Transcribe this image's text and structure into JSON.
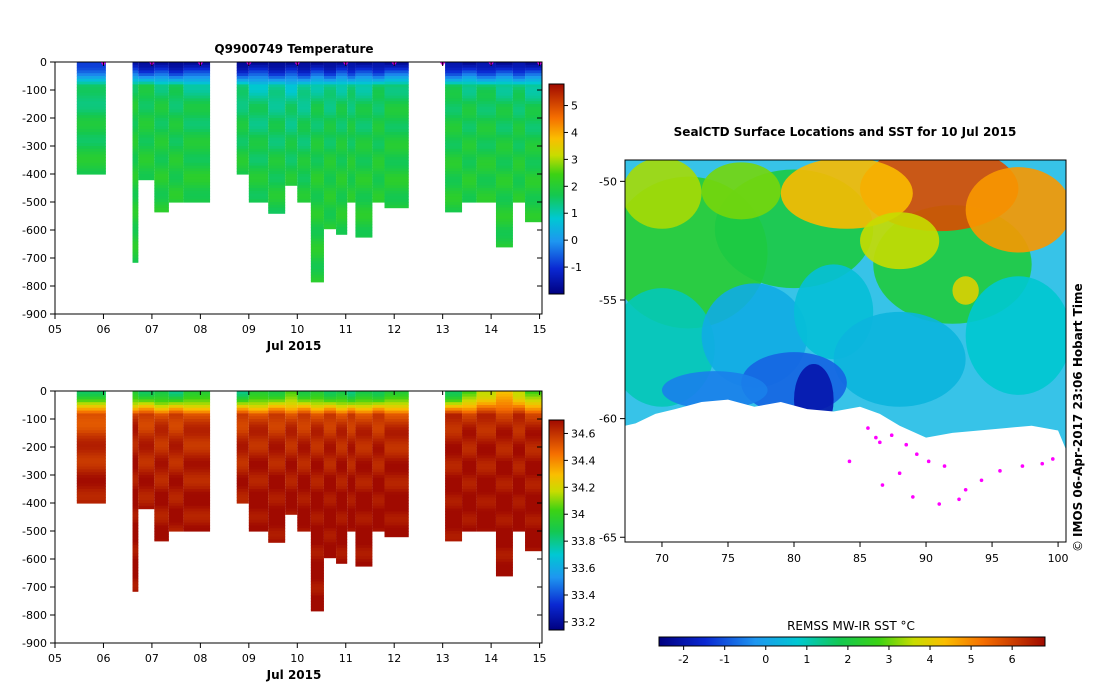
{
  "figure_caption": "IMOS 06-Apr-2017 23:06 Hobart Time",
  "copyright_symbol": "©",
  "chart_data": [
    {
      "type": "heatmap",
      "title": "Q9900749  Temperature",
      "xlabel": "Jul 2015",
      "ylabel": "",
      "xlim": [
        5.0,
        15.05
      ],
      "ylim": [
        -900,
        0
      ],
      "xticks": [
        5,
        6,
        7,
        8,
        9,
        10,
        11,
        12,
        13,
        14,
        15
      ],
      "xtick_labels": [
        "05",
        "06",
        "07",
        "08",
        "09",
        "10",
        "11",
        "12",
        "13",
        "14",
        "15"
      ],
      "yticks": [
        0,
        -100,
        -200,
        -300,
        -400,
        -500,
        -600,
        -700,
        -800,
        -900
      ],
      "ytick_labels": [
        "0",
        "-100",
        "-200",
        "-300",
        "-400",
        "-500",
        "-600",
        "-700",
        "-800",
        "-900"
      ],
      "colorbar": {
        "min": -2.0,
        "max": 5.8,
        "ticks": [
          -1,
          0,
          1,
          2,
          3,
          4,
          5
        ],
        "tick_labels": [
          "-1",
          "0",
          "1",
          "2",
          "3",
          "4",
          "5"
        ]
      },
      "profiles": [
        {
          "x0": 5.45,
          "x1": 6.05,
          "depth": 400,
          "surface": -0.8,
          "mid": 1.3,
          "deep": 1.9
        },
        {
          "x0": 6.6,
          "x1": 6.72,
          "depth": 715,
          "surface": -1.6,
          "mid": 1.7,
          "deep": 1.9
        },
        {
          "x0": 6.72,
          "x1": 7.05,
          "depth": 420,
          "surface": -1.6,
          "mid": 1.6,
          "deep": 1.9
        },
        {
          "x0": 7.05,
          "x1": 7.35,
          "depth": 535,
          "surface": -1.7,
          "mid": 1.5,
          "deep": 1.9
        },
        {
          "x0": 7.35,
          "x1": 7.65,
          "depth": 500,
          "surface": -1.7,
          "mid": 1.4,
          "deep": 1.9
        },
        {
          "x0": 7.65,
          "x1": 8.2,
          "depth": 500,
          "surface": -1.7,
          "mid": 1.3,
          "deep": 1.9
        },
        {
          "x0": 8.75,
          "x1": 9.0,
          "depth": 400,
          "surface": -1.7,
          "mid": 1.2,
          "deep": 1.9
        },
        {
          "x0": 9.0,
          "x1": 9.4,
          "depth": 500,
          "surface": -1.7,
          "mid": 1.0,
          "deep": 1.8
        },
        {
          "x0": 9.4,
          "x1": 9.75,
          "depth": 540,
          "surface": -1.7,
          "mid": 1.0,
          "deep": 1.8
        },
        {
          "x0": 9.75,
          "x1": 10.0,
          "depth": 440,
          "surface": -1.7,
          "mid": 0.9,
          "deep": 1.8
        },
        {
          "x0": 10.0,
          "x1": 10.28,
          "depth": 500,
          "surface": -1.7,
          "mid": 1.0,
          "deep": 1.8
        },
        {
          "x0": 10.28,
          "x1": 10.55,
          "depth": 785,
          "surface": -1.7,
          "mid": 1.2,
          "deep": 1.9
        },
        {
          "x0": 10.55,
          "x1": 10.8,
          "depth": 595,
          "surface": -1.7,
          "mid": 1.1,
          "deep": 1.9
        },
        {
          "x0": 10.8,
          "x1": 11.03,
          "depth": 615,
          "surface": -1.6,
          "mid": 1.2,
          "deep": 1.9
        },
        {
          "x0": 11.03,
          "x1": 11.2,
          "depth": 500,
          "surface": -1.6,
          "mid": 1.2,
          "deep": 1.9
        },
        {
          "x0": 11.2,
          "x1": 11.55,
          "depth": 625,
          "surface": -1.6,
          "mid": 1.2,
          "deep": 1.9
        },
        {
          "x0": 11.55,
          "x1": 11.8,
          "depth": 500,
          "surface": -1.6,
          "mid": 1.4,
          "deep": 1.9
        },
        {
          "x0": 11.8,
          "x1": 12.3,
          "depth": 520,
          "surface": -1.6,
          "mid": 1.5,
          "deep": 1.9
        },
        {
          "x0": 13.05,
          "x1": 13.4,
          "depth": 535,
          "surface": -1.6,
          "mid": 1.5,
          "deep": 1.9
        },
        {
          "x0": 13.4,
          "x1": 13.7,
          "depth": 500,
          "surface": -1.6,
          "mid": 1.4,
          "deep": 1.9
        },
        {
          "x0": 13.7,
          "x1": 14.1,
          "depth": 500,
          "surface": -1.6,
          "mid": 1.4,
          "deep": 1.9
        },
        {
          "x0": 14.1,
          "x1": 14.45,
          "depth": 660,
          "surface": -1.6,
          "mid": 1.3,
          "deep": 1.9
        },
        {
          "x0": 14.45,
          "x1": 14.7,
          "depth": 500,
          "surface": -1.6,
          "mid": 1.3,
          "deep": 1.9
        },
        {
          "x0": 14.7,
          "x1": 15.05,
          "depth": 570,
          "surface": -1.6,
          "mid": 1.2,
          "deep": 1.9
        }
      ],
      "markers_x": [
        6.0,
        7.0,
        8.0,
        9.0,
        10.0,
        11.0,
        12.0,
        13.0,
        14.0,
        15.0
      ],
      "marker_color": "#e000e0"
    },
    {
      "type": "heatmap",
      "title": "",
      "xlabel": "Jul 2015",
      "xlim": [
        5.0,
        15.05
      ],
      "ylim": [
        -900,
        0
      ],
      "xticks": [
        5,
        6,
        7,
        8,
        9,
        10,
        11,
        12,
        13,
        14,
        15
      ],
      "xtick_labels": [
        "05",
        "06",
        "07",
        "08",
        "09",
        "10",
        "11",
        "12",
        "13",
        "14",
        "15"
      ],
      "yticks": [
        0,
        -100,
        -200,
        -300,
        -400,
        -500,
        -600,
        -700,
        -800,
        -900
      ],
      "ytick_labels": [
        "0",
        "-100",
        "-200",
        "-300",
        "-400",
        "-500",
        "-600",
        "-700",
        "-800",
        "-900"
      ],
      "colorbar": {
        "min": 33.14,
        "max": 34.7,
        "ticks": [
          33.2,
          33.4,
          33.6,
          33.8,
          34,
          34.2,
          34.4,
          34.6
        ],
        "tick_labels": [
          "33.2",
          "33.4",
          "33.6",
          "33.8",
          "34",
          "34.2",
          "34.4",
          "34.6"
        ]
      },
      "profiles": [
        {
          "x0": 5.45,
          "x1": 6.05,
          "depth": 400,
          "surface": 33.9,
          "mid": 34.5,
          "deep": 34.68
        },
        {
          "x0": 6.6,
          "x1": 6.72,
          "depth": 715,
          "surface": 33.9,
          "mid": 34.6,
          "deep": 34.7
        },
        {
          "x0": 6.72,
          "x1": 7.05,
          "depth": 420,
          "surface": 33.9,
          "mid": 34.55,
          "deep": 34.68
        },
        {
          "x0": 7.05,
          "x1": 7.35,
          "depth": 535,
          "surface": 33.85,
          "mid": 34.55,
          "deep": 34.68
        },
        {
          "x0": 7.35,
          "x1": 7.65,
          "depth": 500,
          "surface": 33.85,
          "mid": 34.55,
          "deep": 34.68
        },
        {
          "x0": 7.65,
          "x1": 8.2,
          "depth": 500,
          "surface": 33.9,
          "mid": 34.55,
          "deep": 34.68
        },
        {
          "x0": 8.75,
          "x1": 9.0,
          "depth": 400,
          "surface": 33.85,
          "mid": 34.55,
          "deep": 34.68
        },
        {
          "x0": 9.0,
          "x1": 9.4,
          "depth": 500,
          "surface": 33.9,
          "mid": 34.55,
          "deep": 34.7
        },
        {
          "x0": 9.4,
          "x1": 9.75,
          "depth": 540,
          "surface": 33.95,
          "mid": 34.55,
          "deep": 34.7
        },
        {
          "x0": 9.75,
          "x1": 10.0,
          "depth": 440,
          "surface": 34.0,
          "mid": 34.55,
          "deep": 34.7
        },
        {
          "x0": 10.0,
          "x1": 10.28,
          "depth": 500,
          "surface": 33.95,
          "mid": 34.55,
          "deep": 34.7
        },
        {
          "x0": 10.28,
          "x1": 10.55,
          "depth": 785,
          "surface": 33.9,
          "mid": 34.55,
          "deep": 34.7
        },
        {
          "x0": 10.55,
          "x1": 10.8,
          "depth": 595,
          "surface": 33.9,
          "mid": 34.55,
          "deep": 34.7
        },
        {
          "x0": 10.8,
          "x1": 11.03,
          "depth": 615,
          "surface": 33.85,
          "mid": 34.55,
          "deep": 34.7
        },
        {
          "x0": 11.03,
          "x1": 11.2,
          "depth": 500,
          "surface": 33.85,
          "mid": 34.55,
          "deep": 34.7
        },
        {
          "x0": 11.2,
          "x1": 11.55,
          "depth": 625,
          "surface": 33.85,
          "mid": 34.55,
          "deep": 34.7
        },
        {
          "x0": 11.55,
          "x1": 11.8,
          "depth": 500,
          "surface": 33.9,
          "mid": 34.55,
          "deep": 34.7
        },
        {
          "x0": 11.8,
          "x1": 12.3,
          "depth": 520,
          "surface": 33.9,
          "mid": 34.55,
          "deep": 34.7
        },
        {
          "x0": 13.05,
          "x1": 13.4,
          "depth": 535,
          "surface": 33.9,
          "mid": 34.6,
          "deep": 34.7
        },
        {
          "x0": 13.4,
          "x1": 13.7,
          "depth": 500,
          "surface": 34.0,
          "mid": 34.6,
          "deep": 34.7
        },
        {
          "x0": 13.7,
          "x1": 14.1,
          "depth": 500,
          "surface": 34.2,
          "mid": 34.6,
          "deep": 34.7
        },
        {
          "x0": 14.1,
          "x1": 14.45,
          "depth": 660,
          "surface": 34.25,
          "mid": 34.6,
          "deep": 34.7
        },
        {
          "x0": 14.45,
          "x1": 14.7,
          "depth": 500,
          "surface": 34.2,
          "mid": 34.6,
          "deep": 34.7
        },
        {
          "x0": 14.7,
          "x1": 15.05,
          "depth": 570,
          "surface": 34.0,
          "mid": 34.6,
          "deep": 34.7
        }
      ]
    },
    {
      "type": "map",
      "title": "SealCTD Surface Locations and SST for 10 Jul 2015",
      "xlim": [
        67.2,
        100.6
      ],
      "ylim": [
        -65.2,
        -49.1
      ],
      "xticks": [
        70,
        75,
        80,
        85,
        90,
        95,
        100
      ],
      "xtick_labels": [
        "70",
        "75",
        "80",
        "85",
        "90",
        "95",
        "100"
      ],
      "yticks": [
        -50,
        -55,
        -60,
        -65
      ],
      "ytick_labels": [
        "-50",
        "-55",
        "-60",
        "-65"
      ],
      "colorbar": {
        "label": "REMSS MW-IR SST °C",
        "min": -2.6,
        "max": 6.8,
        "ticks": [
          -2,
          -1,
          0,
          1,
          2,
          3,
          4,
          5,
          6
        ],
        "tick_labels": [
          "-2",
          "-1",
          "0",
          "1",
          "2",
          "3",
          "4",
          "5",
          "6"
        ]
      },
      "ice_edge_lat": [
        [
          67.2,
          -60.3
        ],
        [
          68.0,
          -60.2
        ],
        [
          69.5,
          -59.8
        ],
        [
          71.0,
          -59.6
        ],
        [
          73.0,
          -59.3
        ],
        [
          75.0,
          -59.2
        ],
        [
          77.0,
          -59.5
        ],
        [
          79.0,
          -59.3
        ],
        [
          81.0,
          -59.6
        ],
        [
          83.0,
          -59.7
        ],
        [
          85.0,
          -59.5
        ],
        [
          86.5,
          -59.8
        ],
        [
          88.0,
          -60.3
        ],
        [
          90.0,
          -60.8
        ],
        [
          92.0,
          -60.6
        ],
        [
          94.0,
          -60.5
        ],
        [
          96.0,
          -60.4
        ],
        [
          98.0,
          -60.3
        ],
        [
          100.0,
          -60.5
        ],
        [
          100.6,
          -61.3
        ]
      ],
      "seal_locations": [
        [
          85.6,
          -60.4
        ],
        [
          86.2,
          -60.8
        ],
        [
          86.5,
          -61.0
        ],
        [
          87.4,
          -60.7
        ],
        [
          88.5,
          -61.1
        ],
        [
          89.3,
          -61.5
        ],
        [
          90.2,
          -61.8
        ],
        [
          91.4,
          -62.0
        ],
        [
          84.2,
          -61.8
        ],
        [
          86.7,
          -62.8
        ],
        [
          89.0,
          -63.3
        ],
        [
          91.0,
          -63.6
        ],
        [
          92.5,
          -63.4
        ],
        [
          93.0,
          -63.0
        ],
        [
          94.2,
          -62.6
        ],
        [
          95.6,
          -62.2
        ],
        [
          97.3,
          -62.0
        ],
        [
          98.8,
          -61.9
        ],
        [
          99.6,
          -61.7
        ],
        [
          88.0,
          -62.3
        ]
      ],
      "marker_color": "#ff00ff"
    }
  ]
}
